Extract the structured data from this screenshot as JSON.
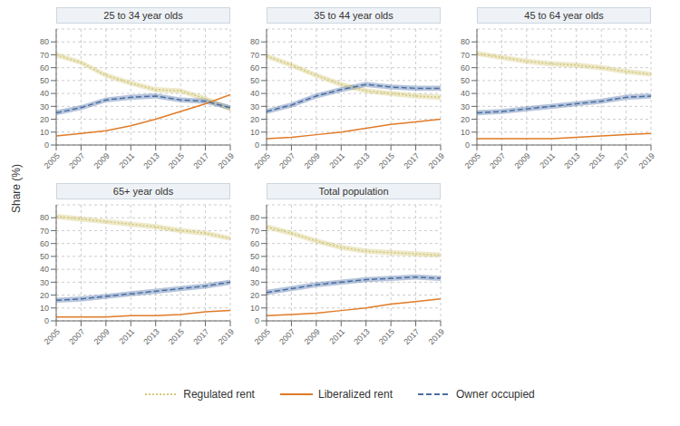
{
  "chart_data": [
    {
      "type": "line",
      "title": "25 to 34 year olds",
      "ylabel": "Share (%)",
      "legend": "bottom",
      "x": [
        2005,
        2007,
        2009,
        2011,
        2013,
        2015,
        2017,
        2019
      ],
      "xlim": [
        2005,
        2019
      ],
      "xticks": [
        2005,
        2007,
        2009,
        2011,
        2013,
        2015,
        2017,
        2019
      ],
      "ylim": [
        0,
        90
      ],
      "yticks": [
        0,
        10,
        20,
        30,
        40,
        50,
        60,
        70,
        80
      ],
      "grid": true,
      "series": [
        {
          "name": "Regulated rent",
          "color": "#d4c97a",
          "line_style": "dotted",
          "band_width": 2.0,
          "values": [
            70,
            64,
            54,
            48,
            43,
            42,
            36,
            28
          ]
        },
        {
          "name": "Liberalized rent",
          "color": "#e07b27",
          "line_style": "solid",
          "values": [
            7,
            9,
            11,
            15,
            20,
            26,
            32,
            39
          ]
        },
        {
          "name": "Owner occupied",
          "color": "#4a6fa5",
          "line_style": "dashed",
          "band_width": 2.0,
          "values": [
            25,
            29,
            35,
            37,
            38,
            35,
            34,
            29
          ]
        }
      ]
    },
    {
      "type": "line",
      "title": "35 to 44 year olds",
      "x": [
        2005,
        2007,
        2009,
        2011,
        2013,
        2015,
        2017,
        2019
      ],
      "xlim": [
        2005,
        2019
      ],
      "xticks": [
        2005,
        2007,
        2009,
        2011,
        2013,
        2015,
        2017,
        2019
      ],
      "ylim": [
        0,
        90
      ],
      "yticks": [
        0,
        10,
        20,
        30,
        40,
        50,
        60,
        70,
        80
      ],
      "grid": true,
      "series": [
        {
          "name": "Regulated rent",
          "color": "#d4c97a",
          "line_style": "dotted",
          "band_width": 2.0,
          "values": [
            69,
            62,
            54,
            47,
            42,
            40,
            38,
            37
          ]
        },
        {
          "name": "Liberalized rent",
          "color": "#e07b27",
          "line_style": "solid",
          "values": [
            5,
            6,
            8,
            10,
            13,
            16,
            18,
            20
          ]
        },
        {
          "name": "Owner occupied",
          "color": "#4a6fa5",
          "line_style": "dashed",
          "band_width": 2.0,
          "values": [
            26,
            31,
            38,
            43,
            47,
            45,
            44,
            44
          ]
        }
      ]
    },
    {
      "type": "line",
      "title": "45 to 64 year olds",
      "x": [
        2005,
        2007,
        2009,
        2011,
        2013,
        2015,
        2017,
        2019
      ],
      "xlim": [
        2005,
        2019
      ],
      "xticks": [
        2005,
        2007,
        2009,
        2011,
        2013,
        2015,
        2017,
        2019
      ],
      "ylim": [
        0,
        90
      ],
      "yticks": [
        0,
        10,
        20,
        30,
        40,
        50,
        60,
        70,
        80
      ],
      "grid": true,
      "series": [
        {
          "name": "Regulated rent",
          "color": "#d4c97a",
          "line_style": "dotted",
          "band_width": 2.0,
          "values": [
            71,
            68,
            65,
            63,
            62,
            60,
            57,
            55
          ]
        },
        {
          "name": "Liberalized rent",
          "color": "#e07b27",
          "line_style": "solid",
          "values": [
            5,
            5,
            5,
            5,
            6,
            7,
            8,
            9
          ]
        },
        {
          "name": "Owner occupied",
          "color": "#4a6fa5",
          "line_style": "dashed",
          "band_width": 2.0,
          "values": [
            25,
            26,
            28,
            30,
            32,
            34,
            37,
            38
          ]
        }
      ]
    },
    {
      "type": "line",
      "title": "65+ year olds",
      "x": [
        2005,
        2007,
        2009,
        2011,
        2013,
        2015,
        2017,
        2019
      ],
      "xlim": [
        2005,
        2019
      ],
      "xticks": [
        2005,
        2007,
        2009,
        2011,
        2013,
        2015,
        2017,
        2019
      ],
      "ylim": [
        0,
        90
      ],
      "yticks": [
        0,
        10,
        20,
        30,
        40,
        50,
        60,
        70,
        80
      ],
      "grid": true,
      "series": [
        {
          "name": "Regulated rent",
          "color": "#d4c97a",
          "line_style": "dotted",
          "band_width": 2.0,
          "values": [
            81,
            79,
            77,
            75,
            73,
            70,
            68,
            64
          ]
        },
        {
          "name": "Liberalized rent",
          "color": "#e07b27",
          "line_style": "solid",
          "values": [
            3,
            3,
            3,
            4,
            4,
            5,
            7,
            8
          ]
        },
        {
          "name": "Owner occupied",
          "color": "#4a6fa5",
          "line_style": "dashed",
          "band_width": 2.0,
          "values": [
            16,
            17,
            19,
            21,
            23,
            25,
            27,
            30
          ]
        }
      ]
    },
    {
      "type": "line",
      "title": "Total population",
      "x": [
        2005,
        2007,
        2009,
        2011,
        2013,
        2015,
        2017,
        2019
      ],
      "xlim": [
        2005,
        2019
      ],
      "xticks": [
        2005,
        2007,
        2009,
        2011,
        2013,
        2015,
        2017,
        2019
      ],
      "ylim": [
        0,
        90
      ],
      "yticks": [
        0,
        10,
        20,
        30,
        40,
        50,
        60,
        70,
        80
      ],
      "grid": true,
      "series": [
        {
          "name": "Regulated rent",
          "color": "#d4c97a",
          "line_style": "dotted",
          "band_width": 2.0,
          "values": [
            73,
            68,
            62,
            57,
            54,
            53,
            52,
            51
          ]
        },
        {
          "name": "Liberalized rent",
          "color": "#e07b27",
          "line_style": "solid",
          "values": [
            4,
            5,
            6,
            8,
            10,
            13,
            15,
            17
          ]
        },
        {
          "name": "Owner occupied",
          "color": "#4a6fa5",
          "line_style": "dashed",
          "band_width": 2.0,
          "values": [
            22,
            25,
            28,
            30,
            32,
            33,
            34,
            33
          ]
        }
      ]
    }
  ]
}
